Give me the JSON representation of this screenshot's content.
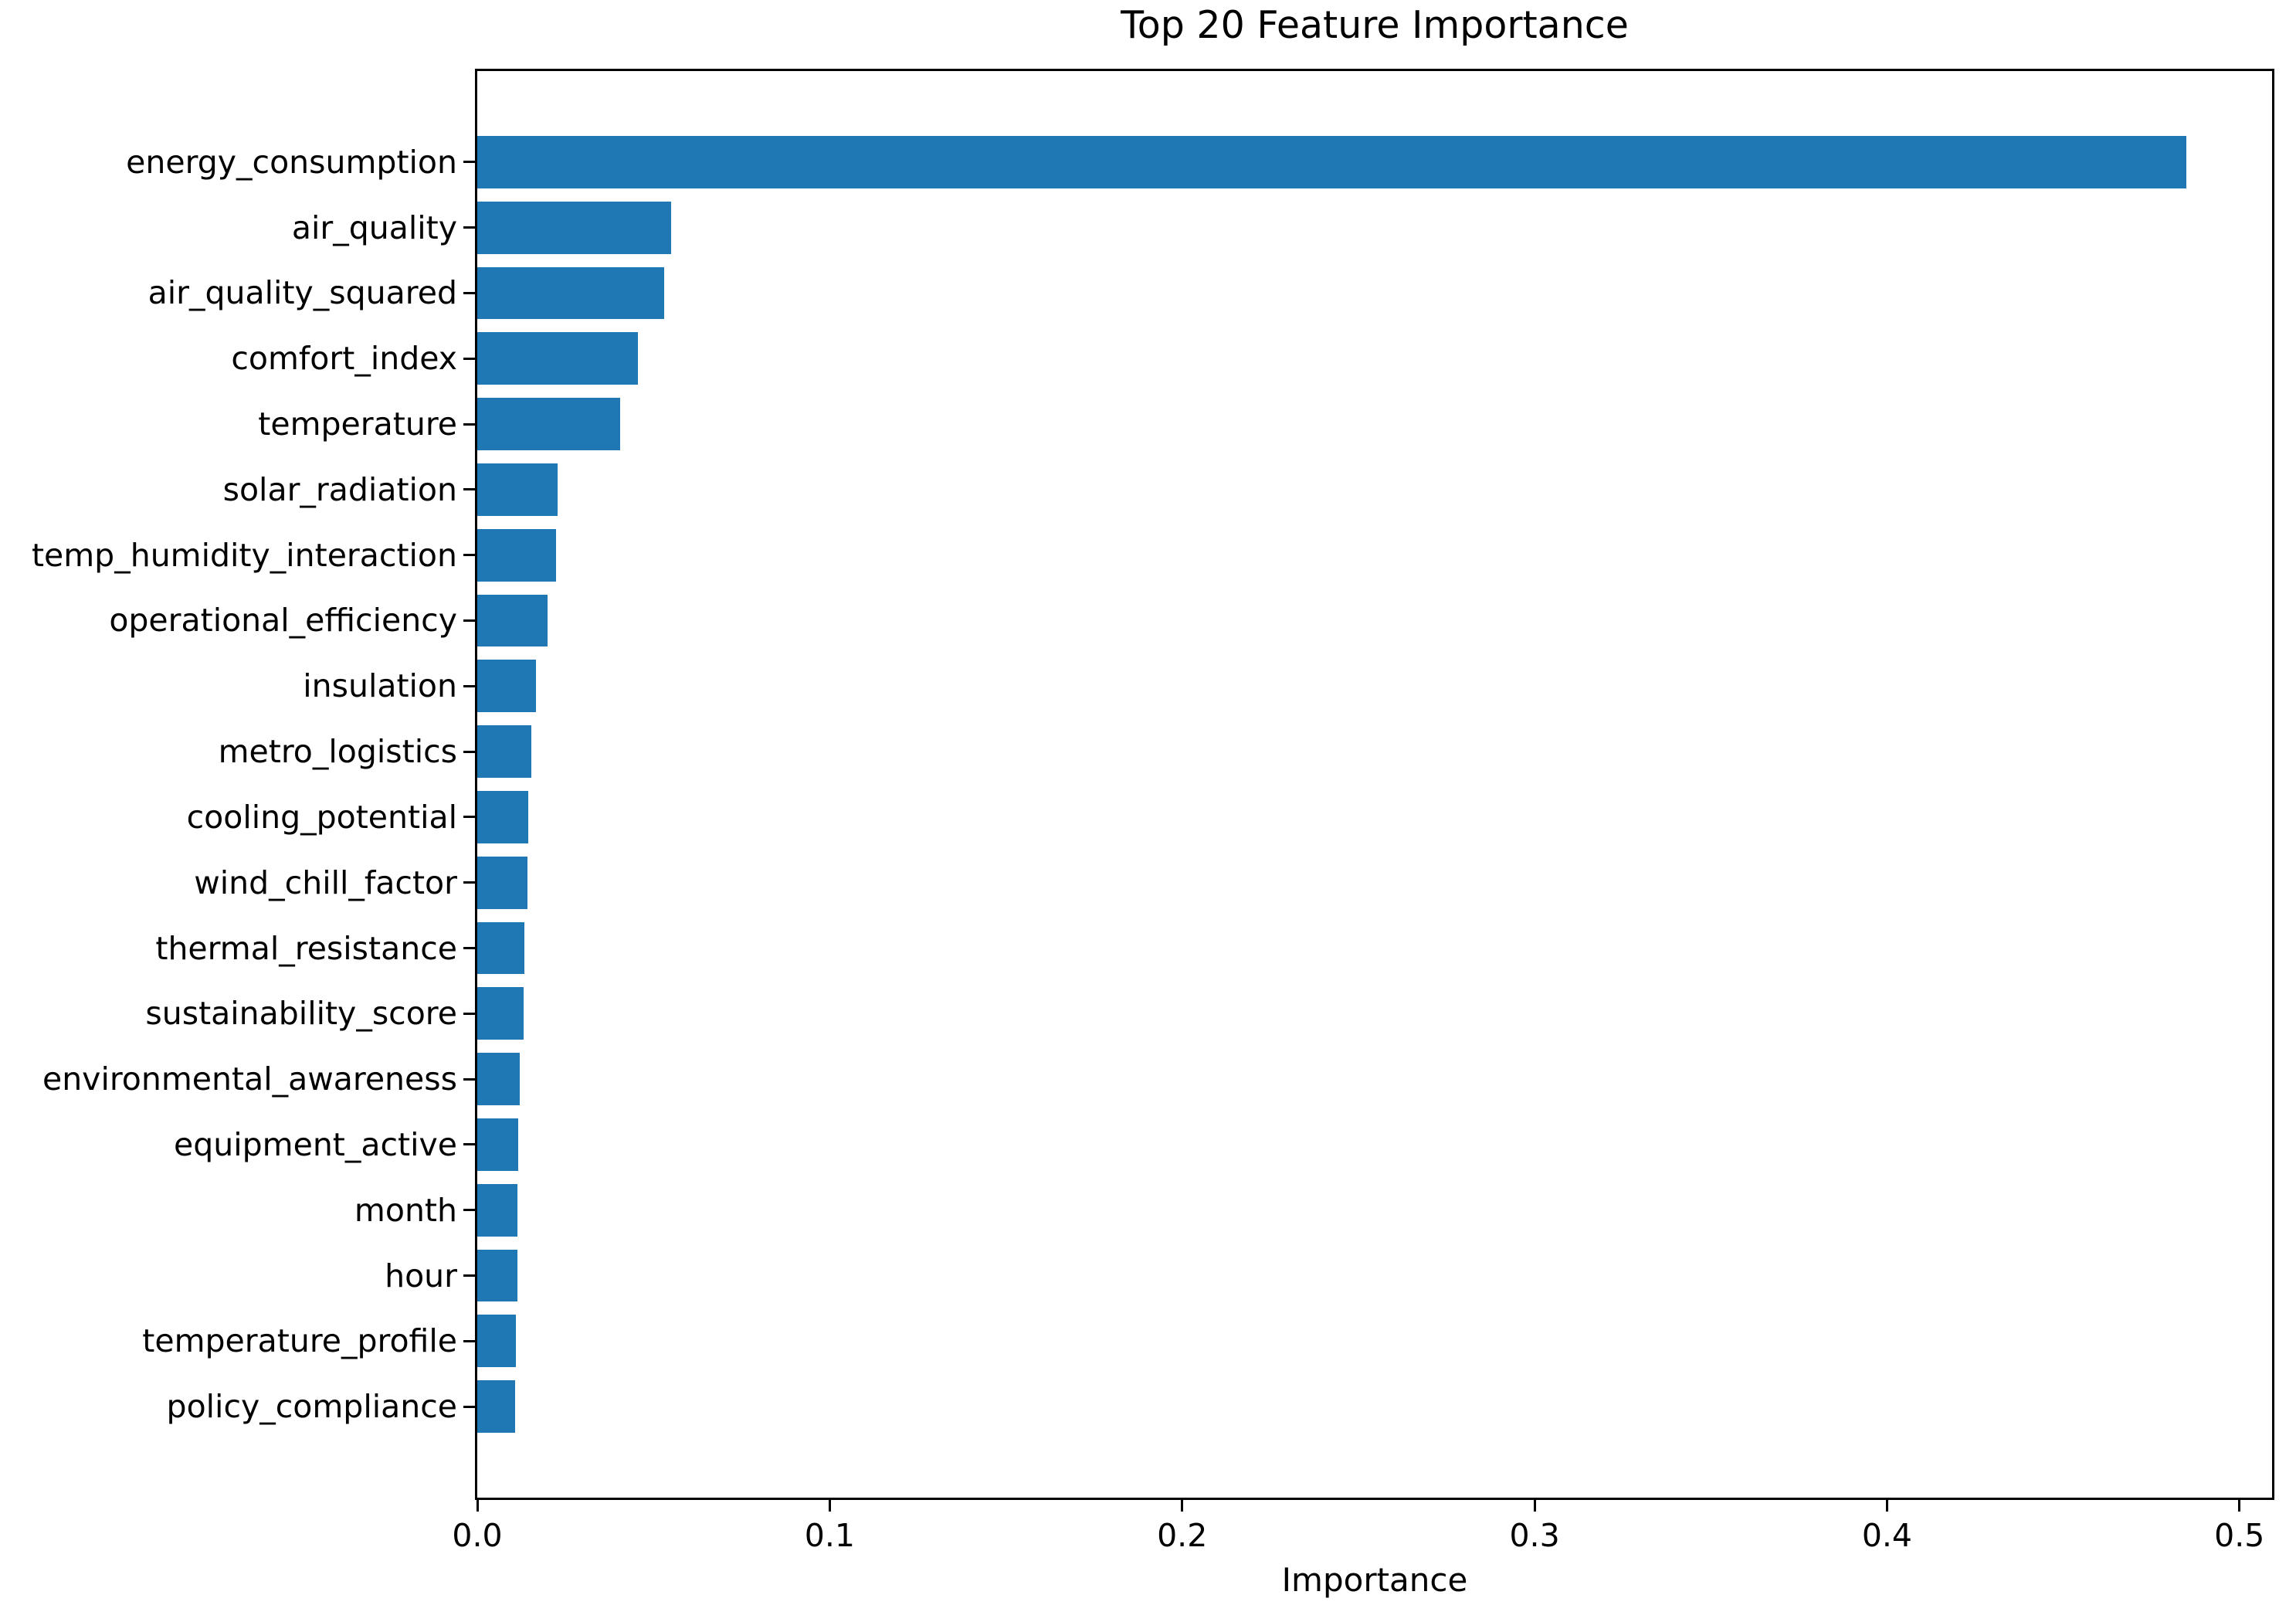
{
  "chart_data": {
    "type": "bar",
    "orientation": "horizontal",
    "title": "Top 20 Feature Importance",
    "xlabel": "Importance",
    "ylabel": "",
    "categories": [
      "energy_consumption",
      "air_quality",
      "air_quality_squared",
      "comfort_index",
      "temperature",
      "solar_radiation",
      "temp_humidity_interaction",
      "operational_efficiency",
      "insulation",
      "metro_logistics",
      "cooling_potential",
      "wind_chill_factor",
      "thermal_resistance",
      "sustainability_score",
      "environmental_awareness",
      "equipment_active",
      "month",
      "hour",
      "temperature_profile",
      "policy_compliance"
    ],
    "values": [
      0.485,
      0.055,
      0.053,
      0.0455,
      0.0405,
      0.0228,
      0.0223,
      0.0199,
      0.0166,
      0.0153,
      0.0145,
      0.0143,
      0.0134,
      0.0132,
      0.012,
      0.0117,
      0.0114,
      0.0113,
      0.011,
      0.0107
    ],
    "x_ticks": [
      0.0,
      0.1,
      0.2,
      0.3,
      0.4,
      0.5
    ],
    "x_tick_labels": [
      "0.0",
      "0.1",
      "0.2",
      "0.3",
      "0.4",
      "0.5"
    ],
    "xlim": [
      0,
      0.50925
    ],
    "bar_color": "#1f77b4",
    "grid": false,
    "legend_position": "none",
    "background_color": "#ffffff",
    "text_color": "#000000"
  }
}
